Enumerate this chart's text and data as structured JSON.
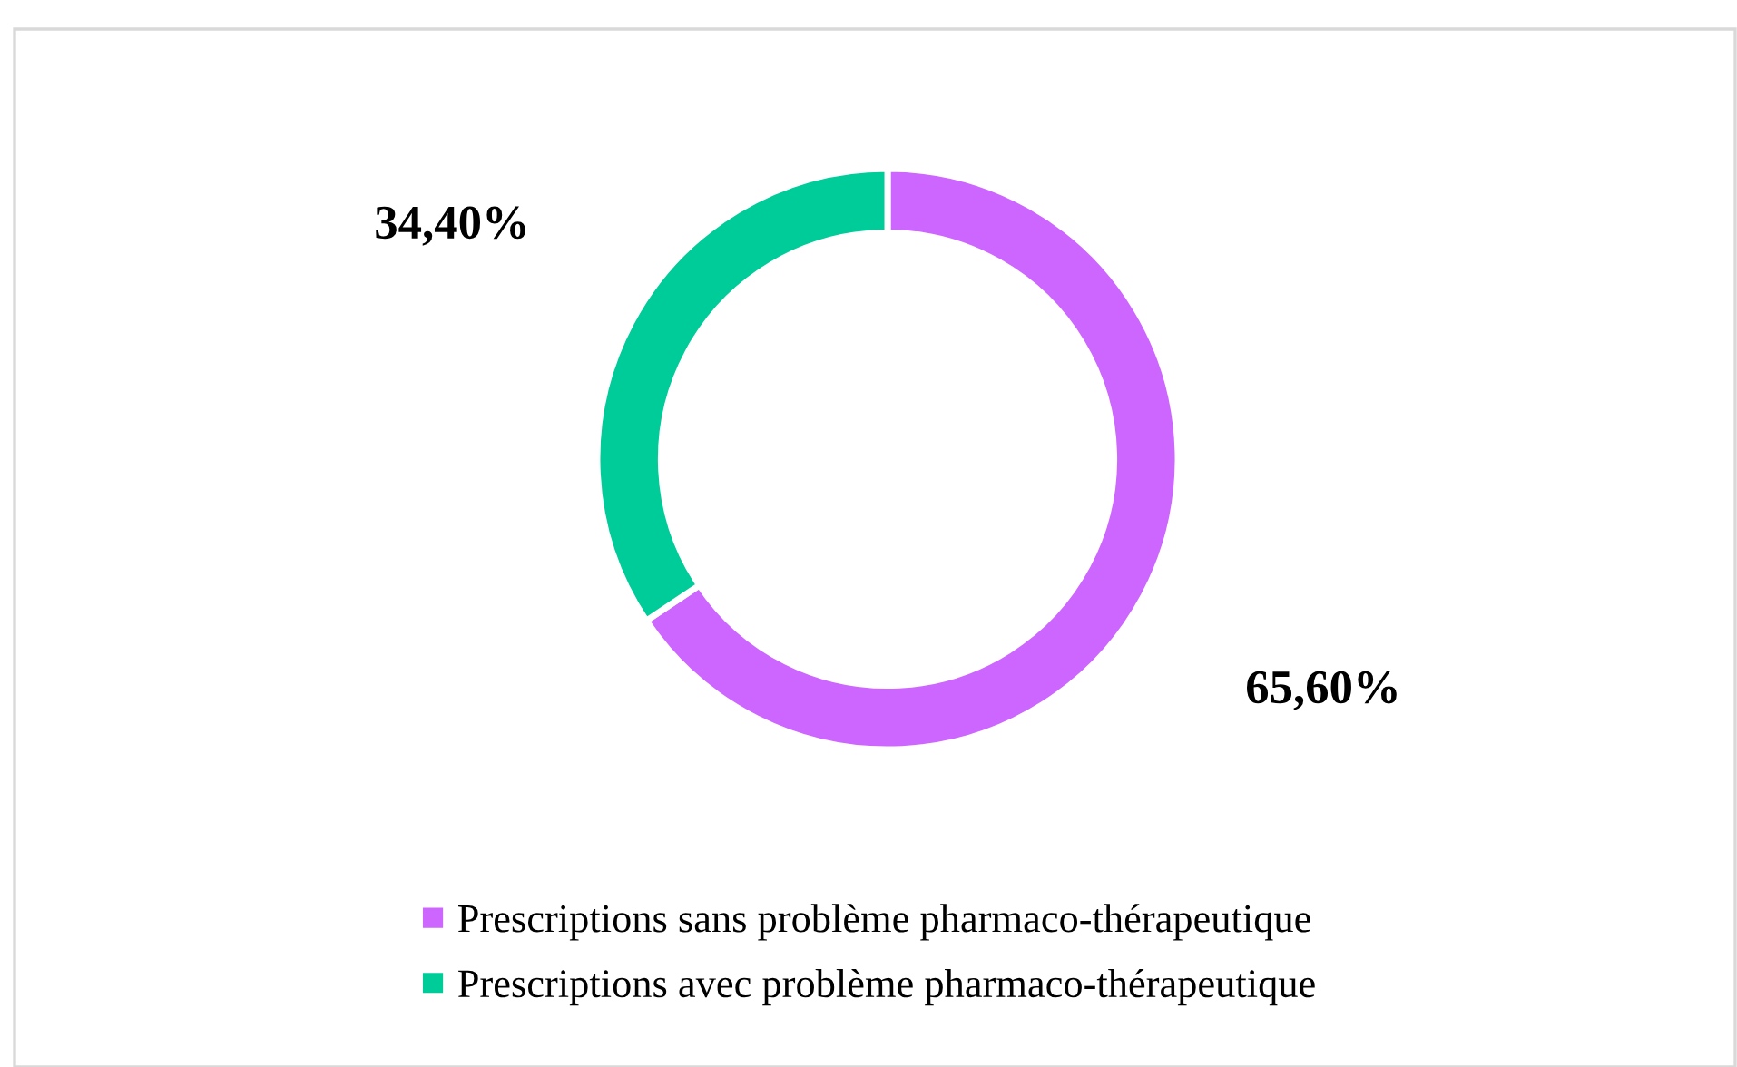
{
  "chart_data": {
    "type": "donut",
    "categories": [
      "Prescriptions sans problème pharmaco-thérapeutique",
      "Prescriptions avec problème pharmaco-thérapeutique"
    ],
    "values": [
      65.6,
      34.4
    ],
    "colors": [
      "#cc66ff",
      "#00cc99"
    ],
    "value_labels": [
      "65,60%",
      "34,40%"
    ],
    "legend": "bottom"
  }
}
